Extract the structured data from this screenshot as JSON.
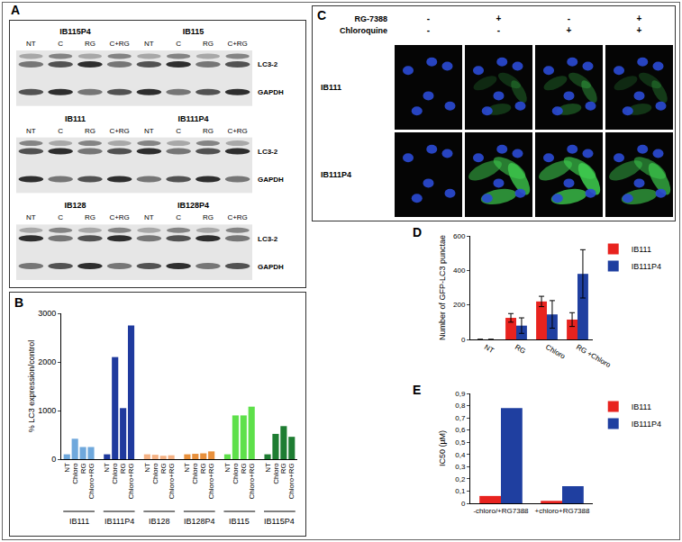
{
  "panel_labels": [
    "A",
    "B",
    "C",
    "D",
    "E"
  ],
  "blots": [
    {
      "lines": [
        {
          "name": "IB115P4",
          "lanes": [
            "NT",
            "C",
            "RG",
            "C+RG"
          ]
        },
        {
          "name": "IB115",
          "lanes": [
            "NT",
            "C",
            "RG",
            "C+RG"
          ]
        }
      ],
      "rows": [
        "LC3-2",
        "GAPDH"
      ]
    },
    {
      "lines": [
        {
          "name": "IB111",
          "lanes": [
            "NT",
            "C",
            "RG",
            "C+RG"
          ]
        },
        {
          "name": "IB111P4",
          "lanes": [
            "NT",
            "C",
            "RG",
            "C+RG"
          ]
        }
      ],
      "rows": [
        "LC3-2",
        "GAPDH"
      ]
    },
    {
      "lines": [
        {
          "name": "IB128",
          "lanes": [
            "NT",
            "C",
            "RG",
            "C+RG"
          ]
        },
        {
          "name": "IB128P4",
          "lanes": [
            "NT",
            "C",
            "RG",
            "C+RG"
          ]
        }
      ],
      "rows": [
        "LC3-2",
        "GAPDH"
      ]
    }
  ],
  "microscopy": {
    "treatments": [
      {
        "name": "RG-7388",
        "signs": [
          "-",
          "+",
          "-",
          "+"
        ]
      },
      {
        "name": "Chloroquine",
        "signs": [
          "-",
          "-",
          "+",
          "+"
        ]
      }
    ],
    "rows": [
      "IB111",
      "IB111P4"
    ]
  },
  "chart_data": [
    {
      "type": "bar",
      "y_label": "% LC3 expression/control",
      "categories": [
        "NT",
        "Chloro",
        "RG",
        "Chloro+RG"
      ],
      "series": [
        {
          "name": "IB111",
          "color": "#6fa8dc",
          "values": [
            100,
            420,
            250,
            250
          ]
        },
        {
          "name": "IB111P4",
          "color": "#1f3a9e",
          "values": [
            100,
            2100,
            1050,
            2750
          ]
        },
        {
          "name": "IB128",
          "color": "#f4b183",
          "values": [
            100,
            90,
            70,
            80
          ]
        },
        {
          "name": "IB128P4",
          "color": "#e8903c",
          "values": [
            100,
            110,
            120,
            160
          ]
        },
        {
          "name": "IB115",
          "color": "#5ee04a",
          "values": [
            100,
            900,
            900,
            1080
          ]
        },
        {
          "name": "IB115P4",
          "color": "#1e7d32",
          "values": [
            100,
            520,
            680,
            460
          ]
        }
      ],
      "ylim": [
        0,
        3000
      ],
      "yticks": [
        0,
        1000,
        2000,
        3000
      ],
      "grid": false
    },
    {
      "type": "bar",
      "y_label": "Number of GFP-LC3 punctae",
      "categories": [
        "NT",
        "RG",
        "Chloro",
        "RG +Chloro"
      ],
      "series": [
        {
          "name": "IB111",
          "color": "#e8231f",
          "values": [
            0,
            125,
            220,
            115
          ],
          "errors": [
            0,
            25,
            30,
            40
          ]
        },
        {
          "name": "IB111P4",
          "color": "#1f3fa0",
          "values": [
            0,
            80,
            145,
            380
          ],
          "errors": [
            0,
            45,
            80,
            140
          ]
        }
      ],
      "ylim": [
        0,
        600
      ],
      "yticks": [
        0,
        200,
        400,
        600
      ],
      "grid": false,
      "legend": "right"
    },
    {
      "type": "bar",
      "y_label": "IC50 (µM)",
      "categories": [
        "-chloro/+RG7388",
        "+chloro+RG7388"
      ],
      "series": [
        {
          "name": "IB111",
          "color": "#e8231f",
          "values": [
            0.06,
            0.02
          ]
        },
        {
          "name": "IB111P4",
          "color": "#1f3fa0",
          "values": [
            0.78,
            0.14
          ]
        }
      ],
      "ylim": [
        0,
        0.9
      ],
      "yticks": [
        0,
        {
          "value": 0.1,
          "label": "0,1"
        },
        {
          "value": 0.2,
          "label": "0,2"
        },
        {
          "value": 0.3,
          "label": "0,3"
        },
        {
          "value": 0.4,
          "label": "0,4"
        },
        {
          "value": 0.5,
          "label": "0,5"
        },
        {
          "value": 0.6,
          "label": "0,6"
        },
        {
          "value": 0.7,
          "label": "0,7"
        },
        {
          "value": 0.8,
          "label": "0,8"
        },
        {
          "value": 0.9,
          "label": "0,9"
        }
      ],
      "grid": false,
      "legend": "right"
    }
  ]
}
